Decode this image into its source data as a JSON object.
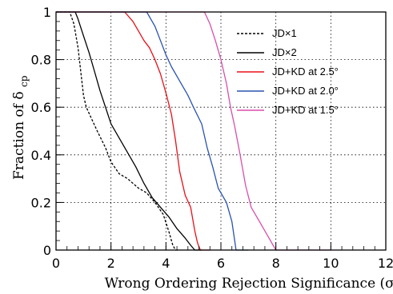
{
  "chart_data": {
    "type": "line",
    "xlabel": "Wrong Ordering Rejection Significance (σ)",
    "ylabel_main": "Fraction of δ",
    "ylabel_sub": "cp",
    "xlim": [
      0,
      12
    ],
    "ylim": [
      0,
      1
    ],
    "x_ticks": [
      "0",
      "2",
      "4",
      "6",
      "8",
      "10",
      "12"
    ],
    "y_ticks": [
      "0",
      "0.2",
      "0.4",
      "0.6",
      "0.8",
      "1"
    ],
    "grid": true,
    "legend_position": "top-right",
    "series": [
      {
        "name": "JD×1",
        "color": "#000000",
        "dash": "dotted",
        "points": [
          [
            0,
            1
          ],
          [
            0.5,
            1
          ],
          [
            0.65,
            0.95
          ],
          [
            0.8,
            0.85
          ],
          [
            0.9,
            0.75
          ],
          [
            1.0,
            0.65
          ],
          [
            1.1,
            0.6
          ],
          [
            1.3,
            0.55
          ],
          [
            1.5,
            0.5
          ],
          [
            1.8,
            0.43
          ],
          [
            2.0,
            0.37
          ],
          [
            2.3,
            0.32
          ],
          [
            2.6,
            0.3
          ],
          [
            3.0,
            0.26
          ],
          [
            3.3,
            0.24
          ],
          [
            3.6,
            0.2
          ],
          [
            3.9,
            0.15
          ],
          [
            4.1,
            0.08
          ],
          [
            4.25,
            0.02
          ],
          [
            4.35,
            0
          ],
          [
            4.5,
            0
          ]
        ]
      },
      {
        "name": "JD×2",
        "color": "#000000",
        "dash": "solid",
        "points": [
          [
            0,
            1
          ],
          [
            0.7,
            1
          ],
          [
            0.8,
            0.97
          ],
          [
            1.0,
            0.9
          ],
          [
            1.2,
            0.83
          ],
          [
            1.4,
            0.75
          ],
          [
            1.6,
            0.67
          ],
          [
            1.8,
            0.6
          ],
          [
            2.0,
            0.53
          ],
          [
            2.3,
            0.47
          ],
          [
            2.6,
            0.41
          ],
          [
            2.9,
            0.35
          ],
          [
            3.2,
            0.28
          ],
          [
            3.5,
            0.22
          ],
          [
            3.8,
            0.18
          ],
          [
            4.1,
            0.14
          ],
          [
            4.4,
            0.09
          ],
          [
            4.7,
            0.05
          ],
          [
            4.9,
            0.02
          ],
          [
            5.05,
            0
          ],
          [
            5.3,
            0
          ]
        ]
      },
      {
        "name": "JD+KD at 2.5°",
        "color": "#e8101a",
        "dash": "solid",
        "points": [
          [
            0,
            1
          ],
          [
            2.5,
            1
          ],
          [
            2.8,
            0.96
          ],
          [
            3.0,
            0.92
          ],
          [
            3.2,
            0.88
          ],
          [
            3.4,
            0.85
          ],
          [
            3.6,
            0.8
          ],
          [
            3.8,
            0.74
          ],
          [
            4.0,
            0.66
          ],
          [
            4.2,
            0.57
          ],
          [
            4.35,
            0.46
          ],
          [
            4.5,
            0.33
          ],
          [
            4.7,
            0.23
          ],
          [
            4.9,
            0.18
          ],
          [
            5.05,
            0.08
          ],
          [
            5.15,
            0.03
          ],
          [
            5.25,
            0
          ],
          [
            5.6,
            0
          ]
        ]
      },
      {
        "name": "JD+KD at 2.0°",
        "color": "#2a52b0",
        "dash": "solid",
        "points": [
          [
            0,
            1
          ],
          [
            3.3,
            1
          ],
          [
            3.6,
            0.94
          ],
          [
            3.8,
            0.88
          ],
          [
            4.0,
            0.82
          ],
          [
            4.2,
            0.77
          ],
          [
            4.5,
            0.71
          ],
          [
            4.8,
            0.65
          ],
          [
            5.0,
            0.6
          ],
          [
            5.3,
            0.53
          ],
          [
            5.5,
            0.43
          ],
          [
            5.7,
            0.35
          ],
          [
            5.9,
            0.26
          ],
          [
            6.2,
            0.2
          ],
          [
            6.4,
            0.12
          ],
          [
            6.5,
            0.04
          ],
          [
            6.55,
            0
          ],
          [
            7.0,
            0
          ]
        ]
      },
      {
        "name": "JD+KD at 1.5°",
        "color": "#d94fa8",
        "dash": "solid",
        "points": [
          [
            0,
            1
          ],
          [
            5.4,
            1
          ],
          [
            5.6,
            0.95
          ],
          [
            5.8,
            0.88
          ],
          [
            6.0,
            0.8
          ],
          [
            6.2,
            0.7
          ],
          [
            6.35,
            0.6
          ],
          [
            6.5,
            0.52
          ],
          [
            6.7,
            0.4
          ],
          [
            6.9,
            0.27
          ],
          [
            7.1,
            0.18
          ],
          [
            7.4,
            0.12
          ],
          [
            7.7,
            0.06
          ],
          [
            7.9,
            0.02
          ],
          [
            8.0,
            0
          ],
          [
            10,
            0
          ]
        ]
      }
    ]
  }
}
